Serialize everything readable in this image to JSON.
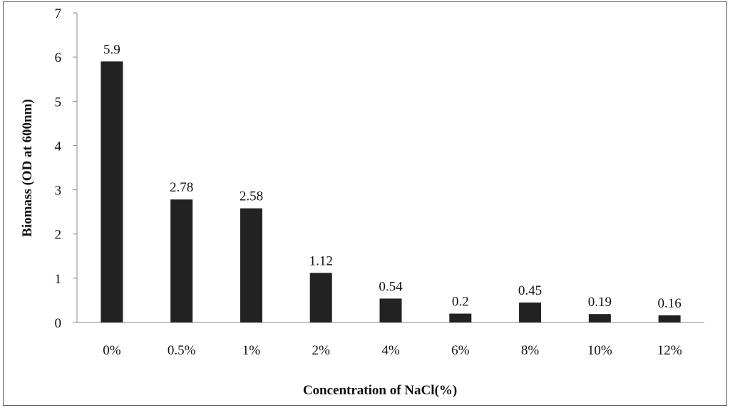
{
  "chart_data": {
    "type": "bar",
    "categories": [
      "0%",
      "0.5%",
      "1%",
      "2%",
      "4%",
      "6%",
      "8%",
      "10%",
      "12%"
    ],
    "values": [
      5.9,
      2.78,
      2.58,
      1.12,
      0.54,
      0.2,
      0.45,
      0.19,
      0.16
    ],
    "data_labels": [
      "5.9",
      "2.78",
      "2.58",
      "1.12",
      "0.54",
      "0.2",
      "0.45",
      "0.19",
      "0.16"
    ],
    "y_ticks": [
      "0",
      "1",
      "2",
      "3",
      "4",
      "5",
      "6",
      "7"
    ],
    "title": "",
    "xlabel": "Concentration of NaCl(%)",
    "ylabel": "Biomass (OD at 600nm)",
    "ylim": [
      0,
      7
    ],
    "grid": false,
    "legend": "none",
    "bar_color": "#222222"
  }
}
